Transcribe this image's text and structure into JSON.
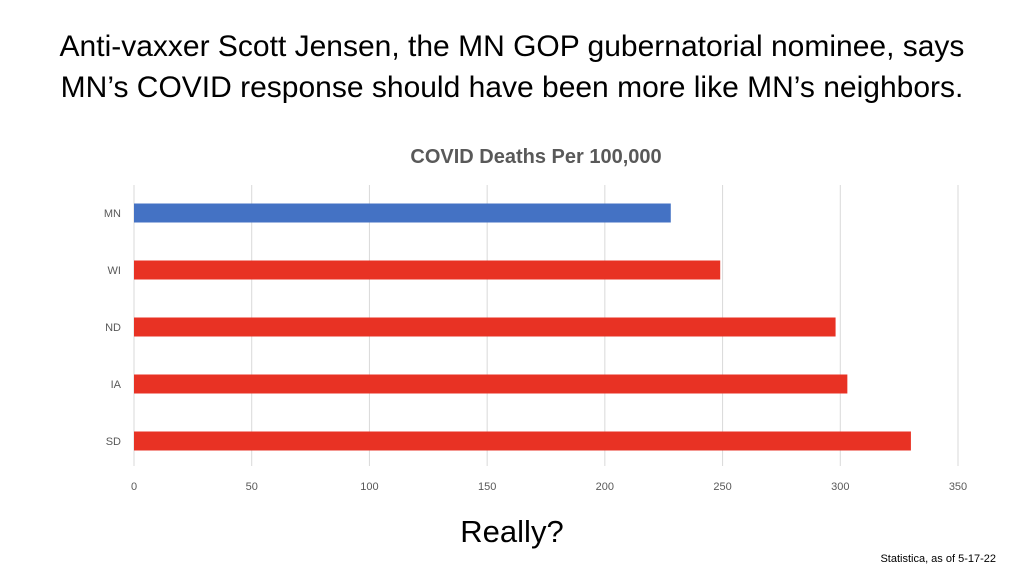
{
  "slide": {
    "headline_line1": "Anti-vaxxer Scott Jensen, the MN GOP gubernatorial nominee, says",
    "headline_line2": "MN’s COVID response should have been more like MN’s neighbors.",
    "question": "Really?",
    "source": "Statistica, as of 5-17-22"
  },
  "colors": {
    "highlight_bar": "#4472C4",
    "other_bars": "#E83224",
    "gridline": "#D9D9D9",
    "title_text": "#595959",
    "tick_text": "#595959"
  },
  "chart_data": {
    "type": "bar",
    "orientation": "horizontal",
    "title": "COVID Deaths Per 100,000",
    "xlabel": "",
    "ylabel": "",
    "categories": [
      "MN",
      "WI",
      "ND",
      "IA",
      "SD"
    ],
    "values": [
      228,
      249,
      298,
      303,
      330
    ],
    "bar_colors": [
      "#4472C4",
      "#E83224",
      "#E83224",
      "#E83224",
      "#E83224"
    ],
    "xlim": [
      0,
      350
    ],
    "xticks": [
      0,
      50,
      100,
      150,
      200,
      250,
      300,
      350
    ],
    "grid": "vertical",
    "legend": "none"
  }
}
